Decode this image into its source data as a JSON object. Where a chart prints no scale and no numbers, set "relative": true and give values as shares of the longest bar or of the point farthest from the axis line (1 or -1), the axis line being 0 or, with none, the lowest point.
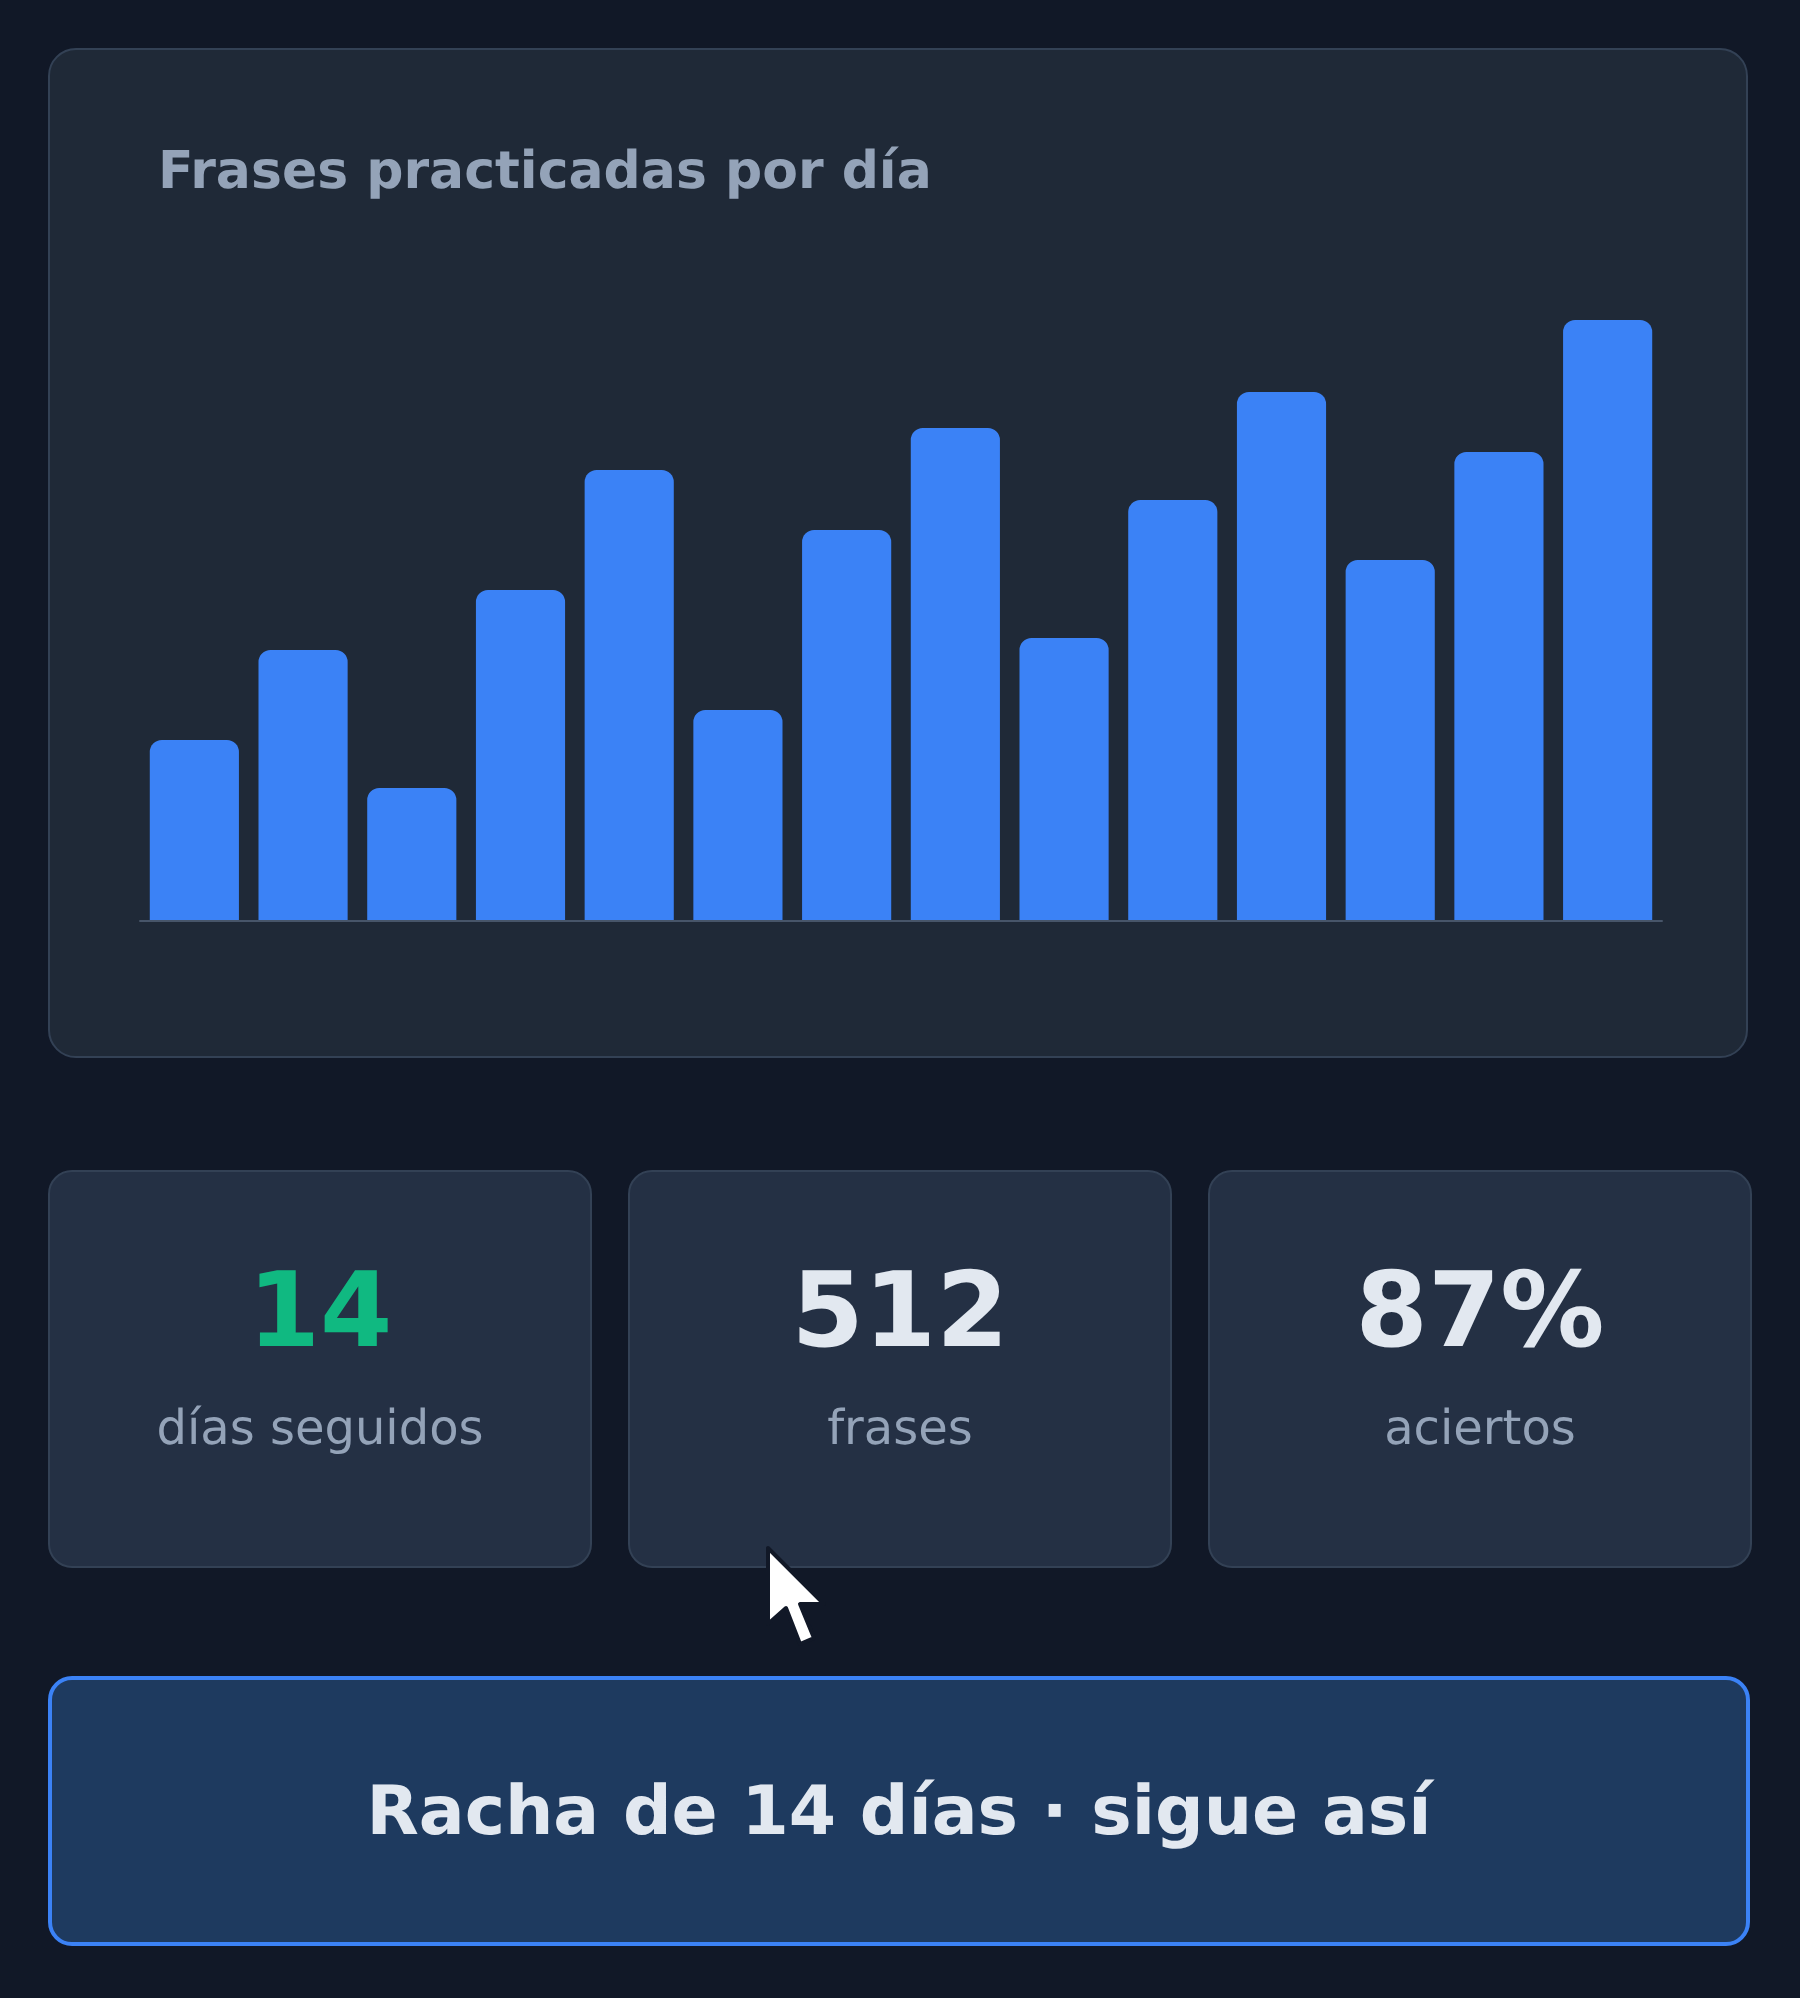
{
  "chart_data": [
    {
      "type": "bar",
      "title": "Frases practicadas por día",
      "relative": true,
      "color": "#3b82f6",
      "categories": [
        null,
        null,
        null,
        null,
        null,
        null,
        null,
        null,
        null,
        null,
        null,
        null,
        null,
        null
      ],
      "values": [
        0.3,
        0.45,
        0.22,
        0.55,
        0.75,
        0.35,
        0.65,
        0.82,
        0.47,
        0.7,
        0.88,
        0.6,
        0.78,
        1
      ]
    },
    {
      "type": "other",
      "annotations": [
        "14",
        "días seguidos"
      ]
    },
    {
      "type": "other",
      "annotations": [
        "512",
        "frases"
      ]
    },
    {
      "type": "other",
      "annotations": [
        "87%",
        "aciertos"
      ]
    },
    {
      "type": "other",
      "annotations": [
        "Racha de 14 días · sigue así"
      ]
    }
  ]
}
